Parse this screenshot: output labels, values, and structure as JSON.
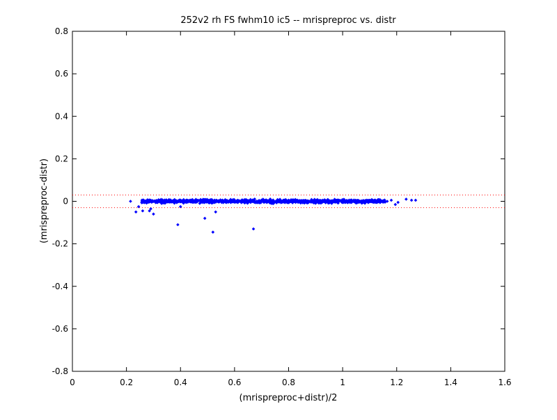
{
  "chart_data": {
    "type": "scatter",
    "title": "252v2 rh FS fwhm10 ic5 -- mrispreproc vs. distr",
    "xlabel": "(mrispreproc+distr)/2",
    "ylabel": "(mrispreproc-distr)",
    "xlim": [
      0,
      1.6
    ],
    "ylim": [
      -0.8,
      0.8
    ],
    "xticks": [
      "0",
      "0.2",
      "0.4",
      "0.6",
      "0.8",
      "1",
      "1.2",
      "1.4",
      "1.6"
    ],
    "yticks": [
      "-0.8",
      "-0.6",
      "-0.4",
      "-0.2",
      "0",
      "0.2",
      "0.4",
      "0.6",
      "0.8"
    ],
    "grid": false,
    "legend": "none",
    "marker_color": "#0000ff",
    "reference_lines": [
      {
        "y": 0.03,
        "style": "dotted",
        "color": "#ff0000"
      },
      {
        "y": -0.03,
        "style": "dotted",
        "color": "#ff0000"
      }
    ],
    "outliers": [
      {
        "x": 0.215,
        "y": 0.0
      },
      {
        "x": 0.235,
        "y": -0.05
      },
      {
        "x": 0.245,
        "y": -0.025
      },
      {
        "x": 0.26,
        "y": -0.045
      },
      {
        "x": 0.285,
        "y": -0.045
      },
      {
        "x": 0.29,
        "y": -0.035
      },
      {
        "x": 0.3,
        "y": -0.06
      },
      {
        "x": 0.33,
        "y": -0.01
      },
      {
        "x": 0.39,
        "y": -0.11
      },
      {
        "x": 0.4,
        "y": -0.025
      },
      {
        "x": 0.49,
        "y": -0.08
      },
      {
        "x": 0.52,
        "y": -0.145
      },
      {
        "x": 0.53,
        "y": -0.05
      },
      {
        "x": 0.67,
        "y": -0.13
      },
      {
        "x": 1.165,
        "y": 0.0
      },
      {
        "x": 1.18,
        "y": 0.005
      },
      {
        "x": 1.195,
        "y": -0.015
      },
      {
        "x": 1.205,
        "y": -0.005
      },
      {
        "x": 1.235,
        "y": 0.01
      },
      {
        "x": 1.255,
        "y": 0.005
      },
      {
        "x": 1.27,
        "y": 0.005
      }
    ],
    "dense_band": {
      "x_range": [
        0.255,
        1.16
      ],
      "y_center": 0.0,
      "y_spread": 0.012,
      "point_count": 900
    }
  }
}
